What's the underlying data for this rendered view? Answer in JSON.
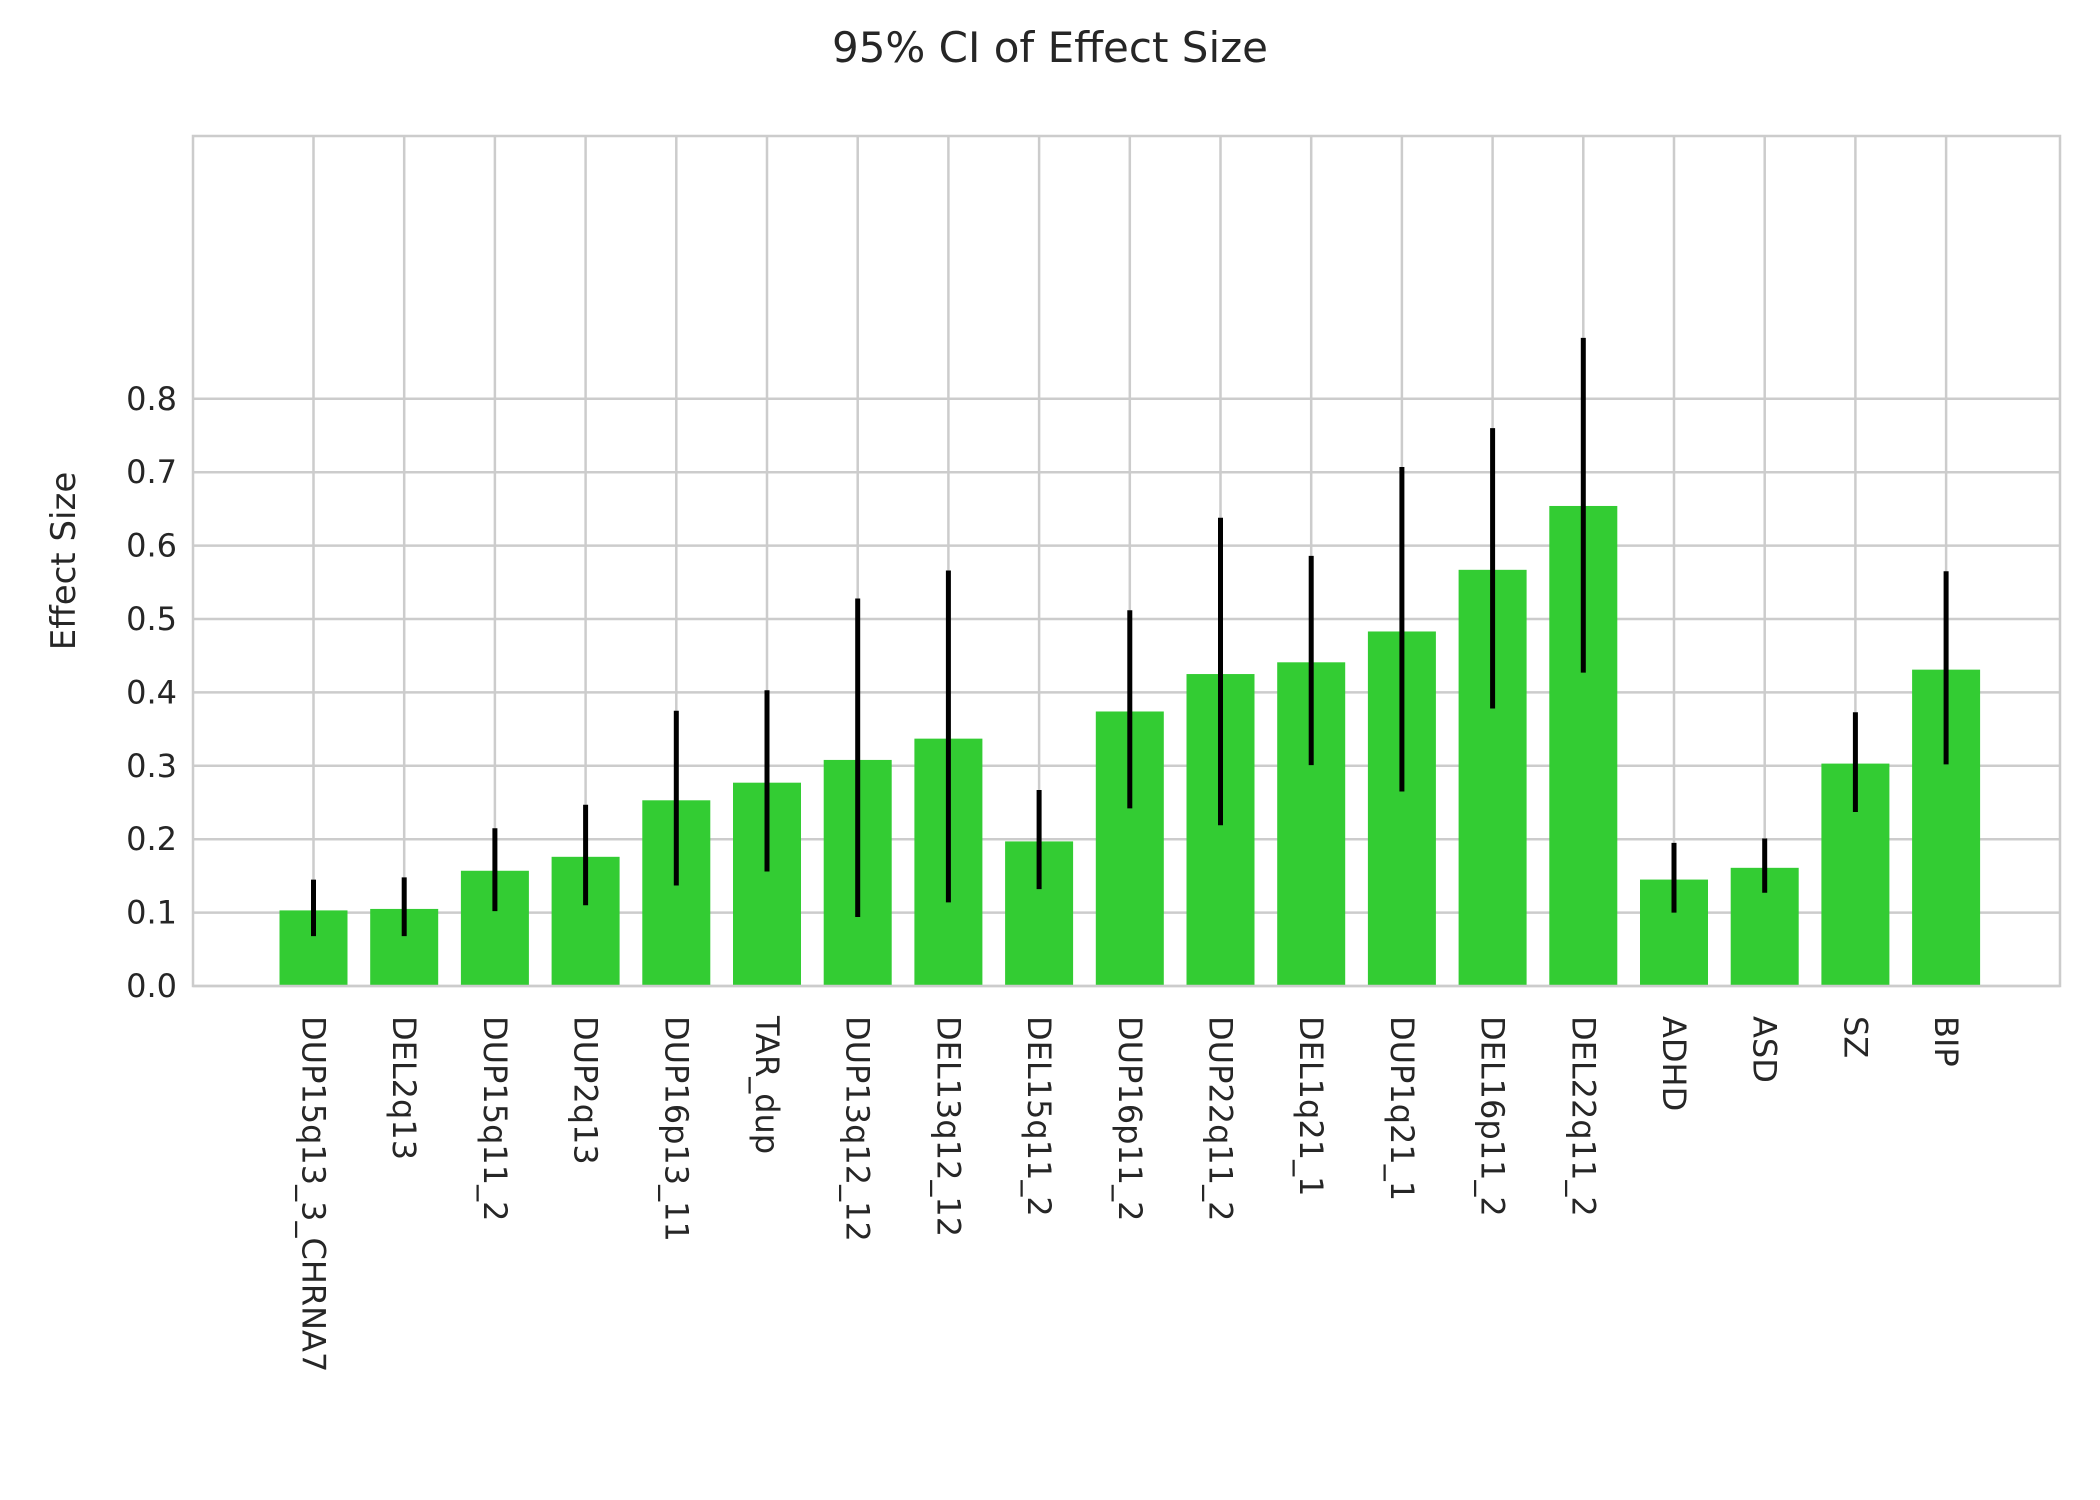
{
  "chart_data": {
    "type": "bar",
    "title": "95% CI of Effect Size",
    "xlabel": "",
    "ylabel": "Effect Size",
    "ylim": [
      0,
      0.93
    ],
    "yticks": [
      "0.0",
      "0.1",
      "0.2",
      "0.3",
      "0.4",
      "0.5",
      "0.6",
      "0.7",
      "0.8"
    ],
    "grid": true,
    "bar_color": "#33cc33",
    "errorbar_color": "#000000",
    "categories": [
      "DUP15q13_3_CHRNA7",
      "DEL2q13",
      "DUP15q11_2",
      "DUP2q13",
      "DUP16p13_11",
      "TAR_dup",
      "DUP13q12_12",
      "DEL13q12_12",
      "DEL15q11_2",
      "DUP16p11_2",
      "DUP22q11_2",
      "DEL1q21_1",
      "DUP1q21_1",
      "DEL16p11_2",
      "DEL22q11_2",
      "ADHD",
      "ASD",
      "SZ",
      "BIP"
    ],
    "values": [
      0.103,
      0.105,
      0.157,
      0.176,
      0.253,
      0.277,
      0.308,
      0.337,
      0.197,
      0.374,
      0.425,
      0.441,
      0.483,
      0.567,
      0.654,
      0.145,
      0.161,
      0.303,
      0.431
    ],
    "ci_low": [
      0.068,
      0.068,
      0.102,
      0.11,
      0.137,
      0.156,
      0.094,
      0.114,
      0.132,
      0.242,
      0.219,
      0.301,
      0.265,
      0.378,
      0.427,
      0.1,
      0.127,
      0.237,
      0.302
    ],
    "ci_high": [
      0.145,
      0.148,
      0.215,
      0.247,
      0.375,
      0.403,
      0.528,
      0.566,
      0.267,
      0.512,
      0.638,
      0.586,
      0.707,
      0.76,
      0.883,
      0.195,
      0.201,
      0.373,
      0.565
    ]
  }
}
